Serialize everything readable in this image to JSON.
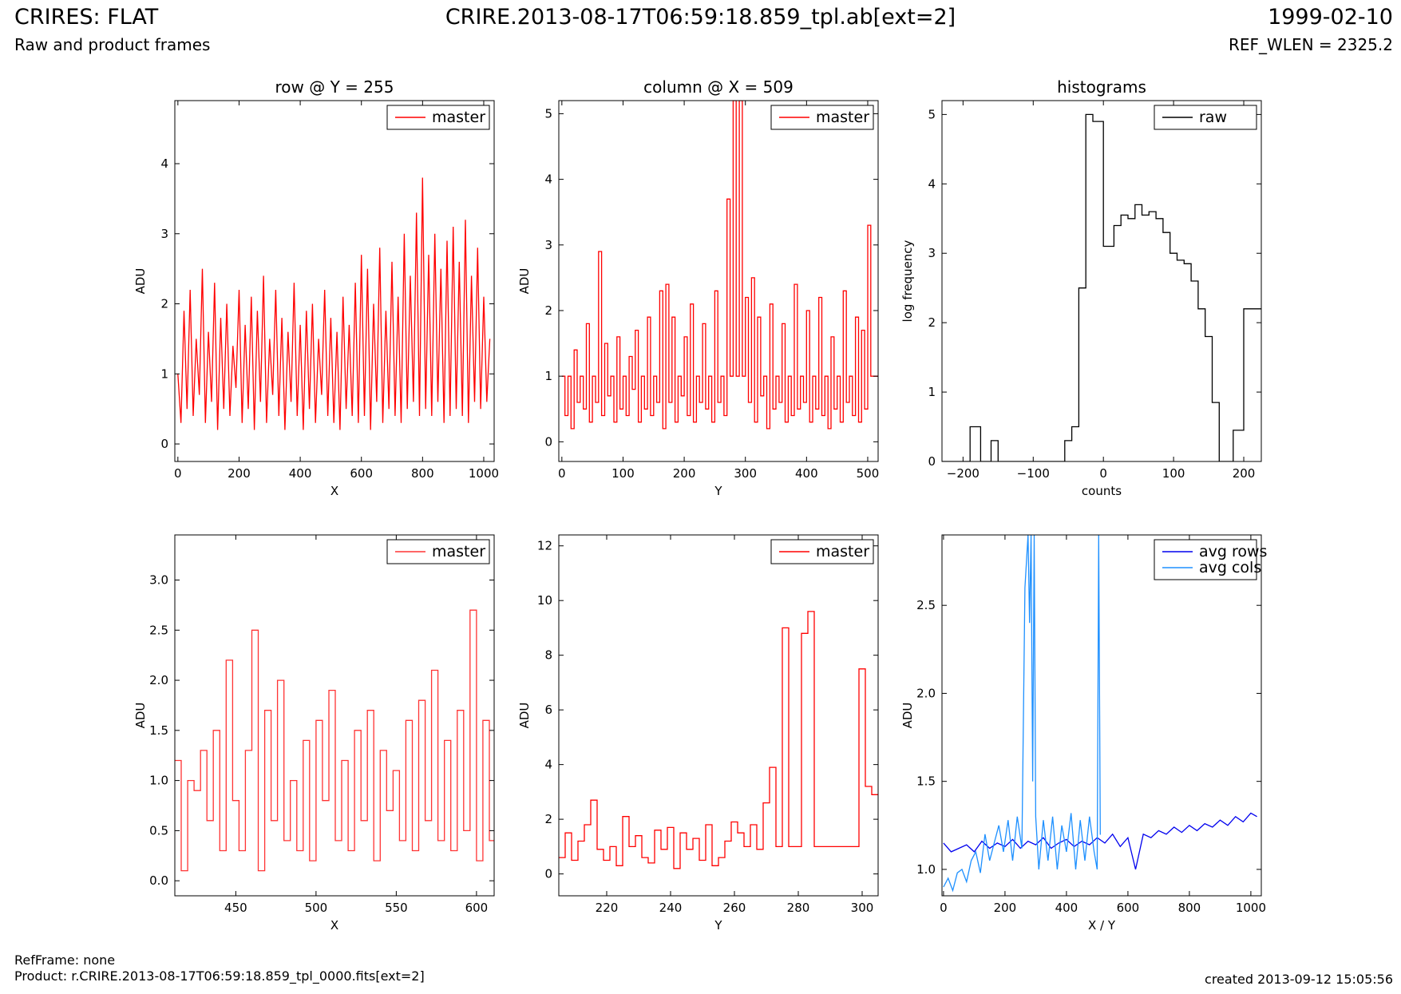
{
  "header": {
    "title_left": "CRIRES: FLAT",
    "subtitle_left": "Raw and product frames",
    "title_center": "CRIRE.2013-08-17T06:59:18.859_tpl.ab[ext=2]",
    "date": "1999-02-10",
    "ref_wlen": "REF_WLEN = 2325.2"
  },
  "footer": {
    "ref_frame": "RefFrame: none",
    "product": "Product: r.CRIRE.2013-08-17T06:59:18.859_tpl_0000.fits[ext=2]",
    "created": "created 2013-09-12 15:05:56"
  },
  "colors": {
    "red": "#ff0000",
    "black": "#000000",
    "blue": "#0000ee",
    "light_blue": "#1e90ff"
  },
  "chart_data": [
    {
      "id": "row-full",
      "type": "line",
      "title": "row @ Y = 255",
      "xlabel": "X",
      "ylabel": "ADU",
      "xlim": [
        -10,
        1034
      ],
      "ylim": [
        -0.25,
        4.9
      ],
      "xticks": [
        0,
        200,
        400,
        600,
        800,
        1000
      ],
      "yticks": [
        0,
        1,
        2,
        3,
        4
      ],
      "legend": {
        "placement": "top-right"
      },
      "series": [
        {
          "name": "master",
          "color": "#ff0000",
          "step": false,
          "x": [
            0,
            10,
            20,
            30,
            40,
            50,
            60,
            70,
            80,
            90,
            100,
            110,
            120,
            130,
            140,
            150,
            160,
            170,
            180,
            190,
            200,
            210,
            220,
            230,
            240,
            250,
            260,
            270,
            280,
            290,
            300,
            310,
            320,
            330,
            340,
            350,
            360,
            370,
            380,
            390,
            400,
            410,
            420,
            430,
            440,
            450,
            460,
            470,
            480,
            490,
            500,
            510,
            520,
            530,
            540,
            550,
            560,
            570,
            580,
            590,
            600,
            610,
            620,
            630,
            640,
            650,
            660,
            670,
            680,
            690,
            700,
            710,
            720,
            730,
            740,
            750,
            760,
            770,
            780,
            790,
            800,
            810,
            820,
            830,
            840,
            850,
            860,
            870,
            880,
            890,
            900,
            910,
            920,
            930,
            940,
            950,
            960,
            970,
            980,
            990,
            1000,
            1010,
            1020
          ],
          "values": [
            1.0,
            0.3,
            1.9,
            0.5,
            2.2,
            0.4,
            1.5,
            0.7,
            2.5,
            0.3,
            1.6,
            0.6,
            2.3,
            0.2,
            1.8,
            0.5,
            2.0,
            0.4,
            1.4,
            0.8,
            2.2,
            0.3,
            1.7,
            0.5,
            2.1,
            0.2,
            1.9,
            0.6,
            2.4,
            0.3,
            1.5,
            0.7,
            2.2,
            0.4,
            1.8,
            0.2,
            1.6,
            0.6,
            2.3,
            0.4,
            1.7,
            0.2,
            1.9,
            0.5,
            2.0,
            0.3,
            1.5,
            0.7,
            2.2,
            0.4,
            1.8,
            0.3,
            1.6,
            0.2,
            2.1,
            0.5,
            1.7,
            0.4,
            2.3,
            0.3,
            2.7,
            0.4,
            2.5,
            0.2,
            2.0,
            0.6,
            2.8,
            0.3,
            1.9,
            0.5,
            2.6,
            0.4,
            2.1,
            0.3,
            3.0,
            0.5,
            2.4,
            0.6,
            3.3,
            0.4,
            3.8,
            0.5,
            2.7,
            0.4,
            3.0,
            0.6,
            2.5,
            0.3,
            2.9,
            0.4,
            3.1,
            0.5,
            2.6,
            0.4,
            3.2,
            0.3,
            2.4,
            0.6,
            2.8,
            0.5,
            2.1,
            0.6,
            1.5
          ]
        }
      ]
    },
    {
      "id": "column-full",
      "type": "line",
      "title": "column @ X = 509",
      "xlabel": "Y",
      "ylabel": "ADU",
      "xlim": [
        -5,
        517
      ],
      "ylim": [
        -0.3,
        5.2
      ],
      "xticks": [
        0,
        100,
        200,
        300,
        400,
        500
      ],
      "yticks": [
        0,
        1,
        2,
        3,
        4,
        5
      ],
      "legend": {
        "placement": "top-right"
      },
      "series": [
        {
          "name": "master",
          "color": "#ff0000",
          "step": true,
          "x": [
            0,
            5,
            10,
            15,
            20,
            25,
            30,
            35,
            40,
            45,
            50,
            55,
            60,
            65,
            70,
            75,
            80,
            85,
            90,
            95,
            100,
            105,
            110,
            115,
            120,
            125,
            130,
            135,
            140,
            145,
            150,
            155,
            160,
            165,
            170,
            175,
            180,
            185,
            190,
            195,
            200,
            205,
            210,
            215,
            220,
            225,
            230,
            235,
            240,
            245,
            250,
            255,
            260,
            265,
            270,
            275,
            280,
            285,
            290,
            295,
            300,
            305,
            310,
            315,
            320,
            325,
            330,
            335,
            340,
            345,
            350,
            355,
            360,
            365,
            370,
            375,
            380,
            385,
            390,
            395,
            400,
            405,
            410,
            415,
            420,
            425,
            430,
            435,
            440,
            445,
            450,
            455,
            460,
            465,
            470,
            475,
            480,
            485,
            490,
            495,
            500,
            505,
            510
          ],
          "values": [
            1.0,
            0.4,
            1.0,
            0.2,
            1.4,
            0.6,
            1.0,
            0.5,
            1.8,
            0.3,
            1.0,
            0.6,
            2.9,
            0.4,
            1.5,
            0.7,
            1.0,
            0.3,
            1.6,
            0.5,
            1.0,
            0.4,
            1.3,
            0.8,
            1.7,
            0.3,
            1.0,
            0.5,
            1.9,
            0.4,
            1.0,
            0.6,
            2.3,
            0.2,
            2.4,
            0.6,
            1.9,
            0.3,
            1.0,
            0.7,
            1.6,
            0.4,
            2.1,
            0.3,
            1.0,
            0.6,
            1.8,
            0.5,
            1.0,
            0.3,
            2.3,
            0.6,
            1.0,
            0.4,
            3.7,
            1.0,
            5.2,
            1.0,
            5.2,
            1.0,
            2.2,
            0.6,
            2.5,
            0.3,
            1.9,
            0.7,
            1.0,
            0.2,
            2.1,
            0.5,
            1.0,
            0.6,
            1.8,
            0.3,
            1.0,
            0.4,
            2.4,
            0.5,
            1.0,
            0.6,
            2.0,
            0.3,
            1.0,
            0.5,
            2.2,
            0.4,
            1.0,
            0.2,
            1.6,
            0.5,
            1.0,
            0.3,
            2.3,
            0.6,
            1.0,
            0.4,
            1.9,
            0.3,
            1.7,
            0.5,
            3.3,
            1.0,
            1.0
          ]
        }
      ]
    },
    {
      "id": "histograms",
      "type": "line",
      "title": "histograms",
      "xlabel": "counts",
      "ylabel": "log frequency",
      "xlim": [
        -230,
        225
      ],
      "ylim": [
        0,
        5.2
      ],
      "xticks": [
        -200,
        -100,
        0,
        100,
        200
      ],
      "yticks": [
        0,
        1,
        2,
        3,
        4,
        5
      ],
      "legend": {
        "placement": "top-right"
      },
      "series": [
        {
          "name": "raw",
          "color": "#000000",
          "step": true,
          "x": [
            -230,
            -190,
            -175,
            -160,
            -150,
            -55,
            -45,
            -35,
            -25,
            -15,
            0,
            15,
            25,
            35,
            45,
            55,
            65,
            75,
            85,
            95,
            105,
            115,
            125,
            135,
            145,
            155,
            165,
            175,
            185,
            200,
            210,
            225
          ],
          "values": [
            0,
            0.5,
            0,
            0.3,
            0,
            0.3,
            0.5,
            2.5,
            5.0,
            4.9,
            3.1,
            3.4,
            3.55,
            3.5,
            3.7,
            3.55,
            3.6,
            3.5,
            3.3,
            3.0,
            2.9,
            2.85,
            2.6,
            2.2,
            1.8,
            0.85,
            0,
            0,
            0.45,
            2.2,
            2.2,
            2.2
          ]
        }
      ]
    },
    {
      "id": "row-zoom",
      "type": "line",
      "title": "",
      "xlabel": "X",
      "ylabel": "ADU",
      "xlim": [
        412,
        611
      ],
      "ylim": [
        -0.15,
        3.45
      ],
      "xticks": [
        450,
        500,
        550,
        600
      ],
      "yticks": [
        0.0,
        0.5,
        1.0,
        1.5,
        2.0,
        2.5,
        3.0
      ],
      "legend": {
        "placement": "top-right"
      },
      "series": [
        {
          "name": "master",
          "color": "#ff3333",
          "step": true,
          "x": [
            412,
            416,
            420,
            424,
            428,
            432,
            436,
            440,
            444,
            448,
            452,
            456,
            460,
            464,
            468,
            472,
            476,
            480,
            484,
            488,
            492,
            496,
            500,
            504,
            508,
            512,
            516,
            520,
            524,
            528,
            532,
            536,
            540,
            544,
            548,
            552,
            556,
            560,
            564,
            568,
            572,
            576,
            580,
            584,
            588,
            592,
            596,
            600,
            604,
            608
          ],
          "values": [
            1.2,
            0.1,
            1.0,
            0.9,
            1.3,
            0.6,
            1.5,
            0.3,
            2.2,
            0.8,
            0.3,
            1.3,
            2.5,
            0.1,
            1.7,
            0.6,
            2.0,
            0.4,
            1.0,
            0.3,
            1.4,
            0.2,
            1.6,
            0.8,
            1.9,
            0.4,
            1.2,
            0.3,
            1.5,
            0.6,
            1.7,
            0.2,
            1.3,
            0.7,
            1.1,
            0.4,
            1.6,
            0.3,
            1.8,
            0.6,
            2.1,
            0.4,
            1.4,
            0.3,
            1.7,
            0.5,
            2.7,
            0.2,
            1.6,
            0.4
          ]
        }
      ]
    },
    {
      "id": "column-zoom",
      "type": "line",
      "title": "",
      "xlabel": "Y",
      "ylabel": "ADU",
      "xlim": [
        205,
        305
      ],
      "ylim": [
        -0.8,
        12.4
      ],
      "xticks": [
        220,
        240,
        260,
        280,
        300
      ],
      "yticks": [
        0,
        2,
        4,
        6,
        8,
        10,
        12
      ],
      "legend": {
        "placement": "top-right"
      },
      "series": [
        {
          "name": "master",
          "color": "#ff0000",
          "step": true,
          "x": [
            205,
            207,
            209,
            211,
            213,
            215,
            217,
            219,
            221,
            223,
            225,
            227,
            229,
            231,
            233,
            235,
            237,
            239,
            241,
            243,
            245,
            247,
            249,
            251,
            253,
            255,
            257,
            259,
            261,
            263,
            265,
            267,
            269,
            271,
            273,
            275,
            277,
            279,
            281,
            283,
            285,
            287,
            289,
            291,
            293,
            295,
            297,
            299,
            301,
            303
          ],
          "values": [
            0.6,
            1.5,
            0.5,
            1.2,
            1.8,
            2.7,
            0.9,
            0.5,
            1.0,
            0.3,
            2.1,
            1.0,
            1.4,
            0.6,
            0.4,
            1.6,
            0.9,
            1.7,
            0.2,
            1.5,
            0.9,
            1.3,
            0.5,
            1.8,
            0.3,
            0.6,
            1.2,
            1.9,
            1.5,
            1.0,
            1.8,
            0.9,
            2.6,
            3.9,
            1.0,
            9.0,
            1.0,
            1.0,
            8.8,
            9.6,
            1.0,
            1.0,
            1.0,
            1.0,
            1.0,
            1.0,
            1.0,
            7.5,
            3.2,
            2.9
          ]
        }
      ]
    },
    {
      "id": "averages",
      "type": "line",
      "title": "",
      "xlabel": "X / Y",
      "ylabel": "ADU",
      "xlim": [
        -5,
        1034
      ],
      "ylim": [
        0.85,
        2.9
      ],
      "xticks": [
        0,
        200,
        400,
        600,
        800,
        1000
      ],
      "yticks": [
        1.0,
        1.5,
        2.0,
        2.5
      ],
      "legend": {
        "placement": "top-right"
      },
      "series": [
        {
          "name": "avg rows",
          "color": "#0000ee",
          "step": false,
          "x": [
            0,
            25,
            50,
            75,
            100,
            125,
            150,
            175,
            200,
            225,
            250,
            275,
            300,
            325,
            350,
            375,
            400,
            425,
            450,
            475,
            500,
            525,
            550,
            575,
            600,
            625,
            650,
            675,
            700,
            725,
            750,
            775,
            800,
            825,
            850,
            875,
            900,
            925,
            950,
            975,
            1000,
            1020
          ],
          "values": [
            1.15,
            1.1,
            1.12,
            1.14,
            1.1,
            1.16,
            1.12,
            1.15,
            1.13,
            1.17,
            1.12,
            1.16,
            1.14,
            1.18,
            1.12,
            1.15,
            1.17,
            1.13,
            1.16,
            1.14,
            1.18,
            1.15,
            1.2,
            1.13,
            1.18,
            1.0,
            1.2,
            1.18,
            1.22,
            1.2,
            1.24,
            1.21,
            1.25,
            1.22,
            1.26,
            1.24,
            1.28,
            1.25,
            1.3,
            1.27,
            1.32,
            1.3
          ]
        },
        {
          "name": "avg cols",
          "color": "#1e90ff",
          "step": false,
          "x": [
            0,
            15,
            30,
            45,
            60,
            75,
            90,
            105,
            120,
            135,
            150,
            165,
            180,
            195,
            210,
            225,
            240,
            255,
            265,
            275,
            280,
            285,
            290,
            295,
            300,
            310,
            325,
            340,
            355,
            370,
            385,
            400,
            415,
            430,
            445,
            460,
            475,
            490,
            500,
            505,
            510,
            512
          ],
          "values": [
            0.9,
            0.95,
            0.88,
            0.98,
            1.0,
            0.93,
            1.05,
            1.1,
            0.98,
            1.2,
            1.05,
            1.15,
            1.25,
            1.1,
            1.28,
            1.05,
            1.3,
            1.12,
            2.6,
            2.9,
            2.4,
            2.9,
            1.5,
            2.9,
            1.3,
            1.0,
            1.28,
            1.05,
            1.3,
            1.0,
            1.25,
            1.1,
            1.32,
            1.0,
            1.28,
            1.05,
            1.3,
            1.1,
            1.0,
            2.9,
            1.2,
            1.2
          ]
        }
      ]
    }
  ]
}
